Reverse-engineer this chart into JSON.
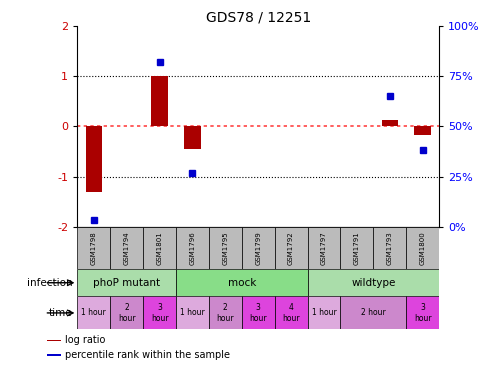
{
  "title": "GDS78 / 12251",
  "samples": [
    "GSM1798",
    "GSM1794",
    "GSM1801",
    "GSM1796",
    "GSM1795",
    "GSM1799",
    "GSM1792",
    "GSM1797",
    "GSM1791",
    "GSM1793",
    "GSM1800"
  ],
  "log_ratio": [
    -1.3,
    0.0,
    1.0,
    -0.45,
    0.0,
    0.0,
    0.0,
    0.0,
    0.0,
    0.12,
    -0.18
  ],
  "percentile": [
    3.5,
    0.0,
    82.0,
    27.0,
    0.0,
    0.0,
    0.0,
    0.0,
    0.0,
    65.0,
    38.0
  ],
  "ylim_left": [
    -2,
    2
  ],
  "ylim_right": [
    0,
    100
  ],
  "infection_groups": [
    {
      "label": "phoP mutant",
      "start": 0,
      "end": 3,
      "color": "#AADDAA"
    },
    {
      "label": "mock",
      "start": 3,
      "end": 7,
      "color": "#88DD88"
    },
    {
      "label": "wildtype",
      "start": 7,
      "end": 11,
      "color": "#AADDAA"
    }
  ],
  "time_spans": [
    {
      "start": 0,
      "end": 1,
      "color": "#DDAADD",
      "label": "1 hour"
    },
    {
      "start": 1,
      "end": 2,
      "color": "#CC88CC",
      "label": "2\nhour"
    },
    {
      "start": 2,
      "end": 3,
      "color": "#DD44DD",
      "label": "3\nhour"
    },
    {
      "start": 3,
      "end": 4,
      "color": "#DDAADD",
      "label": "1 hour"
    },
    {
      "start": 4,
      "end": 5,
      "color": "#CC88CC",
      "label": "2\nhour"
    },
    {
      "start": 5,
      "end": 6,
      "color": "#DD44DD",
      "label": "3\nhour"
    },
    {
      "start": 6,
      "end": 7,
      "color": "#DD44DD",
      "label": "4\nhour"
    },
    {
      "start": 7,
      "end": 8,
      "color": "#DDAADD",
      "label": "1 hour"
    },
    {
      "start": 8,
      "end": 10,
      "color": "#CC88CC",
      "label": "2 hour"
    },
    {
      "start": 10,
      "end": 11,
      "color": "#DD44DD",
      "label": "3\nhour"
    }
  ],
  "bar_color": "#AA0000",
  "dot_color": "#0000CC",
  "zero_line_color": "#FF4444",
  "bg_color": "#FFFFFF",
  "sample_bg_color": "#BBBBBB",
  "ytick_color": "#CC0000",
  "left_label_color": "#000000",
  "legend_items": [
    {
      "color": "#AA0000",
      "label": "log ratio"
    },
    {
      "color": "#0000CC",
      "label": "percentile rank within the sample"
    }
  ]
}
